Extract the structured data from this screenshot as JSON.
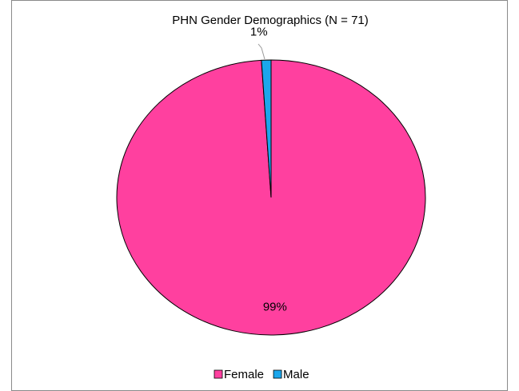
{
  "chart_data": {
    "type": "pie",
    "title": "PHN Gender Demographics (N = 71)",
    "categories": [
      "Female",
      "Male"
    ],
    "values": [
      99,
      1
    ],
    "value_labels": [
      "99%",
      "1%"
    ],
    "colors": [
      "#ff409f",
      "#1ba6ec"
    ],
    "legend": "bottom"
  }
}
